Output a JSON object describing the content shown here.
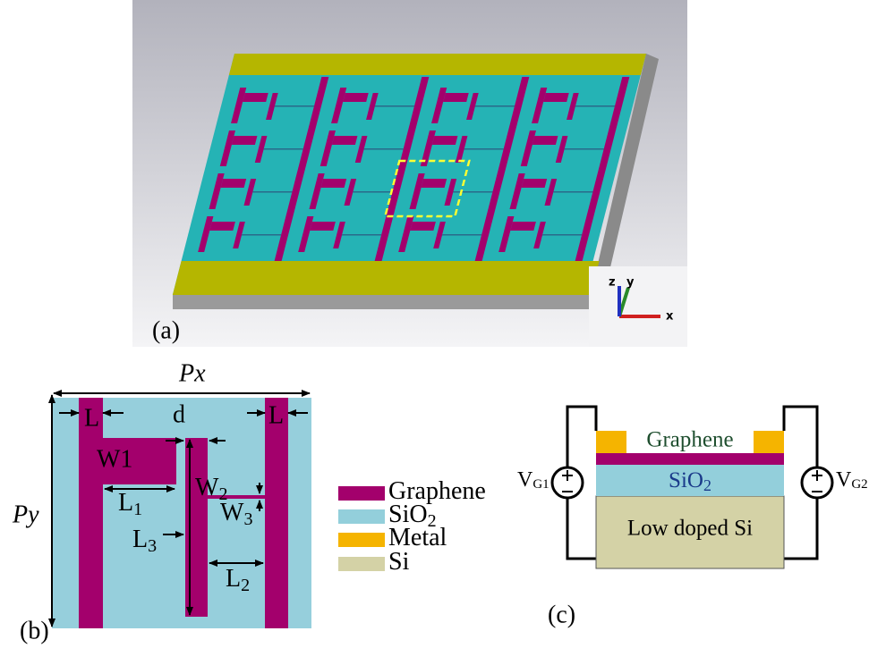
{
  "panel_a": {
    "label": "(a)",
    "axes": {
      "z": "z",
      "y": "y",
      "x": "x"
    }
  },
  "panel_b": {
    "label": "(b)",
    "px": "Px",
    "py": "Py",
    "l_left": "L",
    "l_right": "L",
    "d": "d",
    "w1": "W1",
    "l1": {
      "main": "L",
      "sub": "1"
    },
    "w2": {
      "main": "W",
      "sub": "2"
    },
    "w3": {
      "main": "W",
      "sub": "3"
    },
    "l3": {
      "main": "L",
      "sub": "3"
    },
    "l2": {
      "main": "L",
      "sub": "2"
    }
  },
  "legend": [
    {
      "name": "Graphene"
    },
    {
      "name": "SiO",
      "sub": "2"
    },
    {
      "name": "Metal"
    },
    {
      "name": "Si"
    }
  ],
  "panel_c": {
    "label": "(c)",
    "graphene": "Graphene",
    "sio2": {
      "main": "SiO",
      "sub": "2"
    },
    "si": "Low doped Si",
    "vg1": {
      "main": "V",
      "sub": "G1"
    },
    "vg2": {
      "main": "V",
      "sub": "G2"
    }
  }
}
